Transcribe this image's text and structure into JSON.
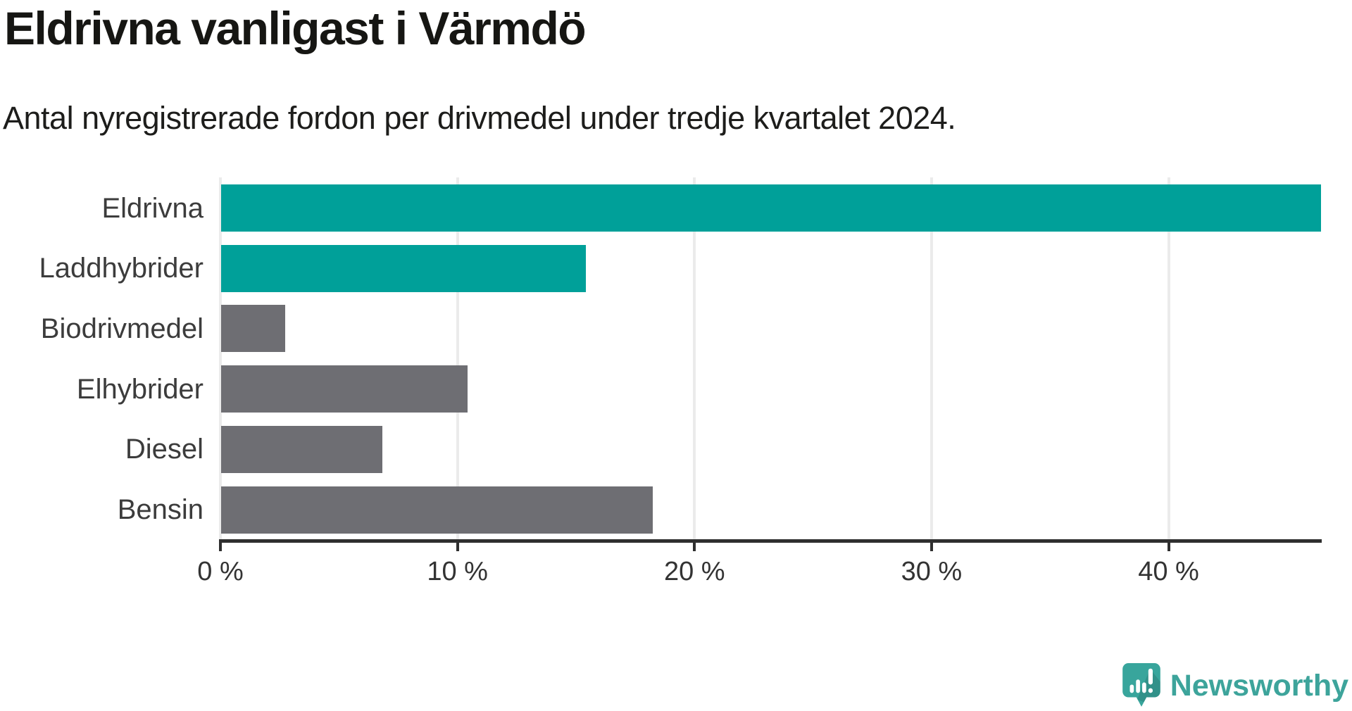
{
  "header": {
    "title": "Eldrivna vanligast i Värmdö",
    "subtitle": "Antal nyregistrerade fordon per drivmedel under tredje kvartalet 2024."
  },
  "chart_data": {
    "type": "bar",
    "orientation": "horizontal",
    "title": "Eldrivna vanligast i Värmdö",
    "subtitle": "Antal nyregistrerade fordon per drivmedel under tredje kvartalet 2024.",
    "categories": [
      "Eldrivna",
      "Laddhybrider",
      "Biodrivmedel",
      "Elhybrider",
      "Diesel",
      "Bensin"
    ],
    "values": [
      46.4,
      15.4,
      2.7,
      10.4,
      6.8,
      18.2
    ],
    "unit": "%",
    "xlabel": "",
    "ylabel": "",
    "xlim": [
      0,
      46.4
    ],
    "xticks": [
      0,
      10,
      20,
      30,
      40
    ],
    "xtick_labels": [
      "0 %",
      "10 %",
      "20 %",
      "30 %",
      "40 %"
    ],
    "grid": true,
    "legend": "none",
    "bar_colors": [
      "#00a099",
      "#00a099",
      "#6e6e73",
      "#6e6e73",
      "#6e6e73",
      "#6e6e73"
    ]
  },
  "colors": {
    "highlight_teal": "#00a099",
    "muted_gray": "#6e6e73",
    "axis": "#2f2f2f",
    "gridline": "#ebebeb",
    "brand_teal": "#3da49b"
  },
  "footer": {
    "brand_name": "Newsworthy",
    "logo_icon": "speech-bubble-bar-chart-exclamation-icon"
  }
}
